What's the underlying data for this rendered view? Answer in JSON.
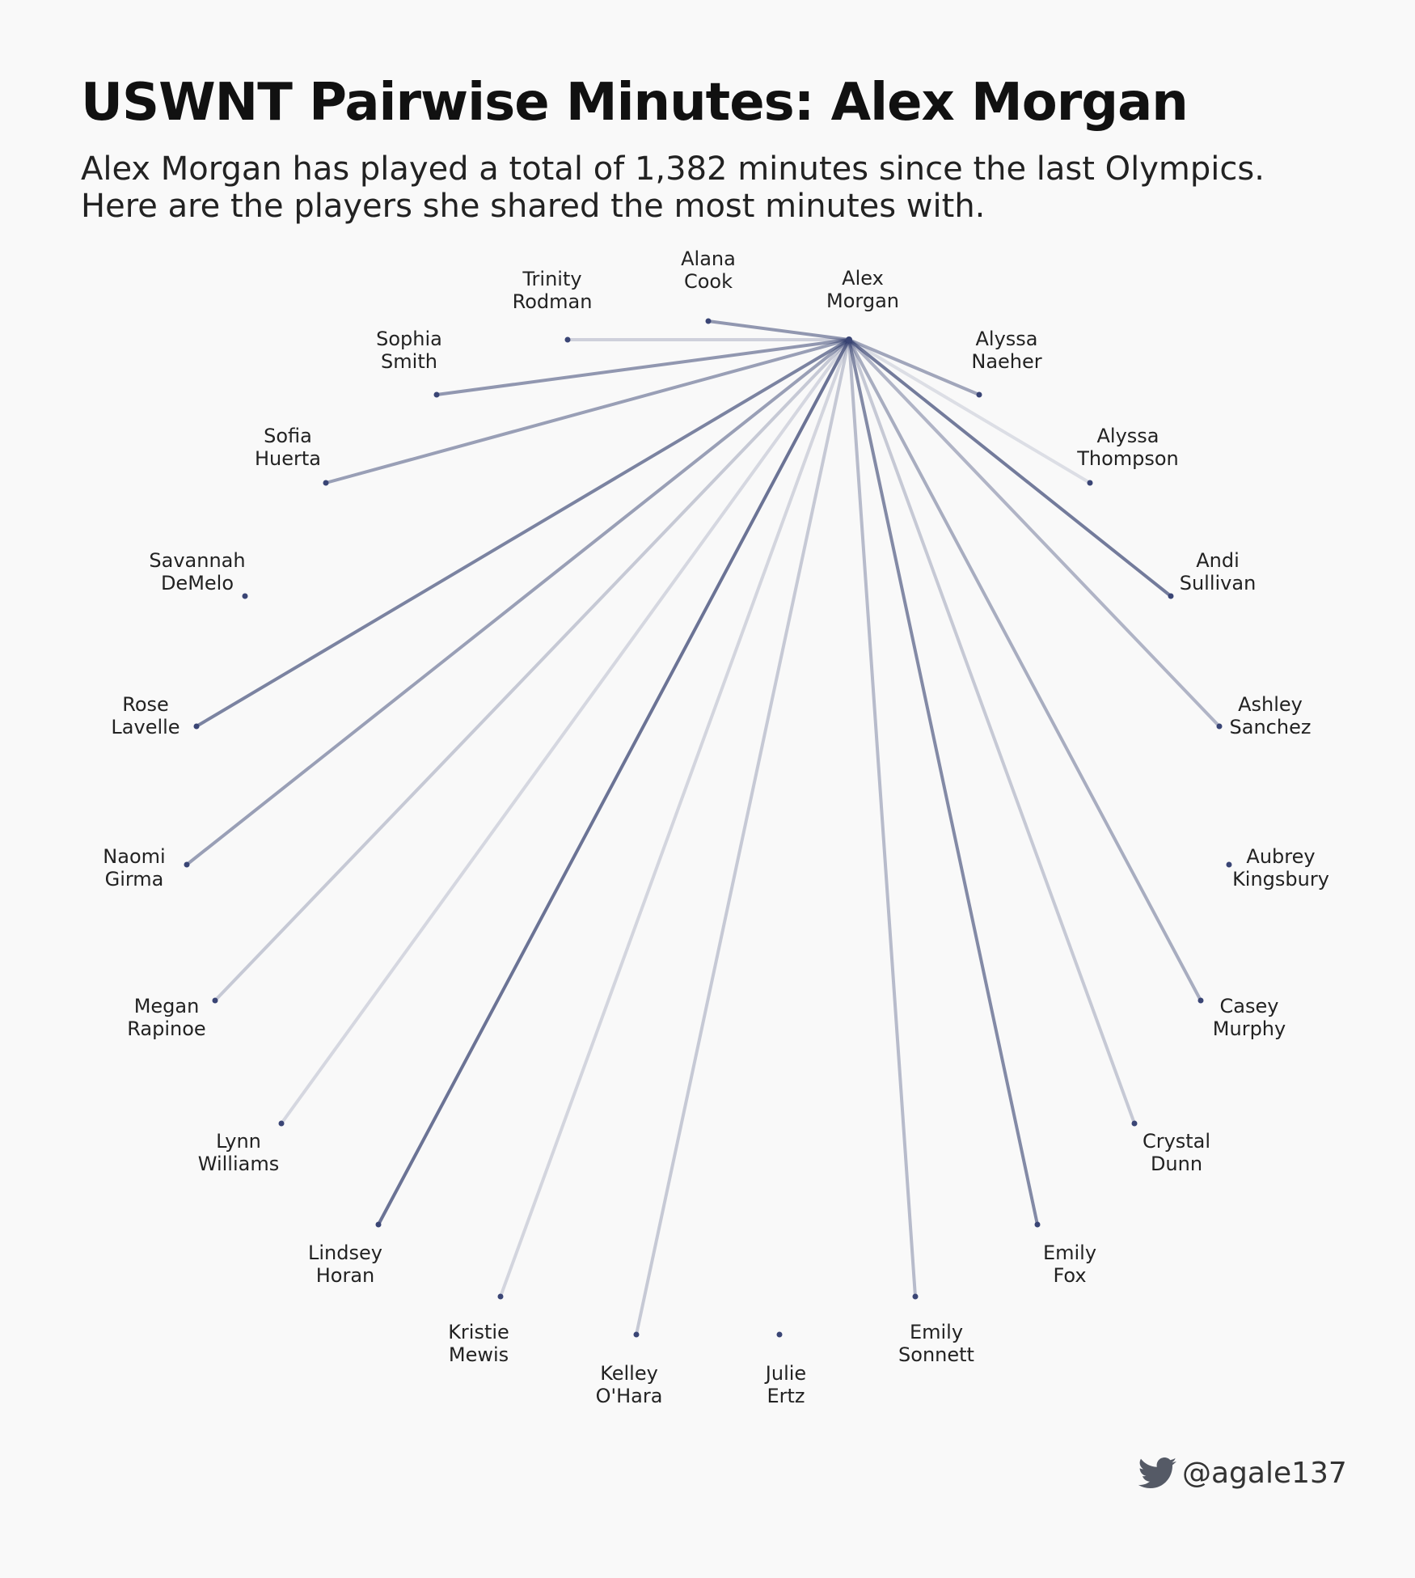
{
  "header": {
    "title": "USWNT Pairwise Minutes: Alex Morgan",
    "subtitle": "Alex Morgan has played a total of 1,382 minutes since the last Olympics. Here are the players she shared the most minutes with."
  },
  "colors": {
    "background": "#f9f9f9",
    "edge": "#2f3b6b",
    "node": "#3a4575"
  },
  "chart_data": {
    "type": "network",
    "center": {
      "name": "Alex Morgan",
      "label": [
        "Alex",
        "Morgan"
      ]
    },
    "nodes": [
      {
        "id": "alana-cook",
        "label": [
          "Alana",
          "Cook"
        ],
        "weight": 0.55
      },
      {
        "id": "alyssa-naeher",
        "label": [
          "Alyssa",
          "Naeher"
        ],
        "weight": 0.45
      },
      {
        "id": "alyssa-thompson",
        "label": [
          "Alyssa",
          "Thompson"
        ],
        "weight": 0.05
      },
      {
        "id": "andi-sullivan",
        "label": [
          "Andi",
          "Sullivan"
        ],
        "weight": 0.75
      },
      {
        "id": "ashley-sanchez",
        "label": [
          "Ashley",
          "Sanchez"
        ],
        "weight": 0.35
      },
      {
        "id": "aubrey-kingsbury",
        "label": [
          "Aubrey",
          "Kingsbury"
        ],
        "weight": 0
      },
      {
        "id": "casey-murphy",
        "label": [
          "Casey",
          "Murphy"
        ],
        "weight": 0.4
      },
      {
        "id": "crystal-dunn",
        "label": [
          "Crystal",
          "Dunn"
        ],
        "weight": 0.2
      },
      {
        "id": "emily-fox",
        "label": [
          "Emily",
          "Fox"
        ],
        "weight": 0.65
      },
      {
        "id": "emily-sonnett",
        "label": [
          "Emily",
          "Sonnett"
        ],
        "weight": 0.3
      },
      {
        "id": "julie-ertz",
        "label": [
          "Julie",
          "Ertz"
        ],
        "weight": 0
      },
      {
        "id": "kelley-ohara",
        "label": [
          "Kelley",
          "O'Hara"
        ],
        "weight": 0.2
      },
      {
        "id": "kristie-mewis",
        "label": [
          "Kristie",
          "Mewis"
        ],
        "weight": 0.12
      },
      {
        "id": "lindsey-horan",
        "label": [
          "Lindsey",
          "Horan"
        ],
        "weight": 0.8
      },
      {
        "id": "lynn-williams",
        "label": [
          "Lynn",
          "Williams"
        ],
        "weight": 0.1
      },
      {
        "id": "megan-rapinoe",
        "label": [
          "Megan",
          "Rapinoe"
        ],
        "weight": 0.2
      },
      {
        "id": "naomi-girma",
        "label": [
          "Naomi",
          "Girma"
        ],
        "weight": 0.5
      },
      {
        "id": "rose-lavelle",
        "label": [
          "Rose",
          "Lavelle"
        ],
        "weight": 0.7
      },
      {
        "id": "savannah-demelo",
        "label": [
          "Savannah",
          "DeMelo"
        ],
        "weight": 0
      },
      {
        "id": "sofia-huerta",
        "label": [
          "Sofia",
          "Huerta"
        ],
        "weight": 0.5
      },
      {
        "id": "sophia-smith",
        "label": [
          "Sophia",
          "Smith"
        ],
        "weight": 0.55
      },
      {
        "id": "trinity-rodman",
        "label": [
          "Trinity",
          "Rodman"
        ],
        "weight": 0.15
      }
    ]
  },
  "credit": {
    "icon": "twitter-icon",
    "handle": "@agale137"
  }
}
